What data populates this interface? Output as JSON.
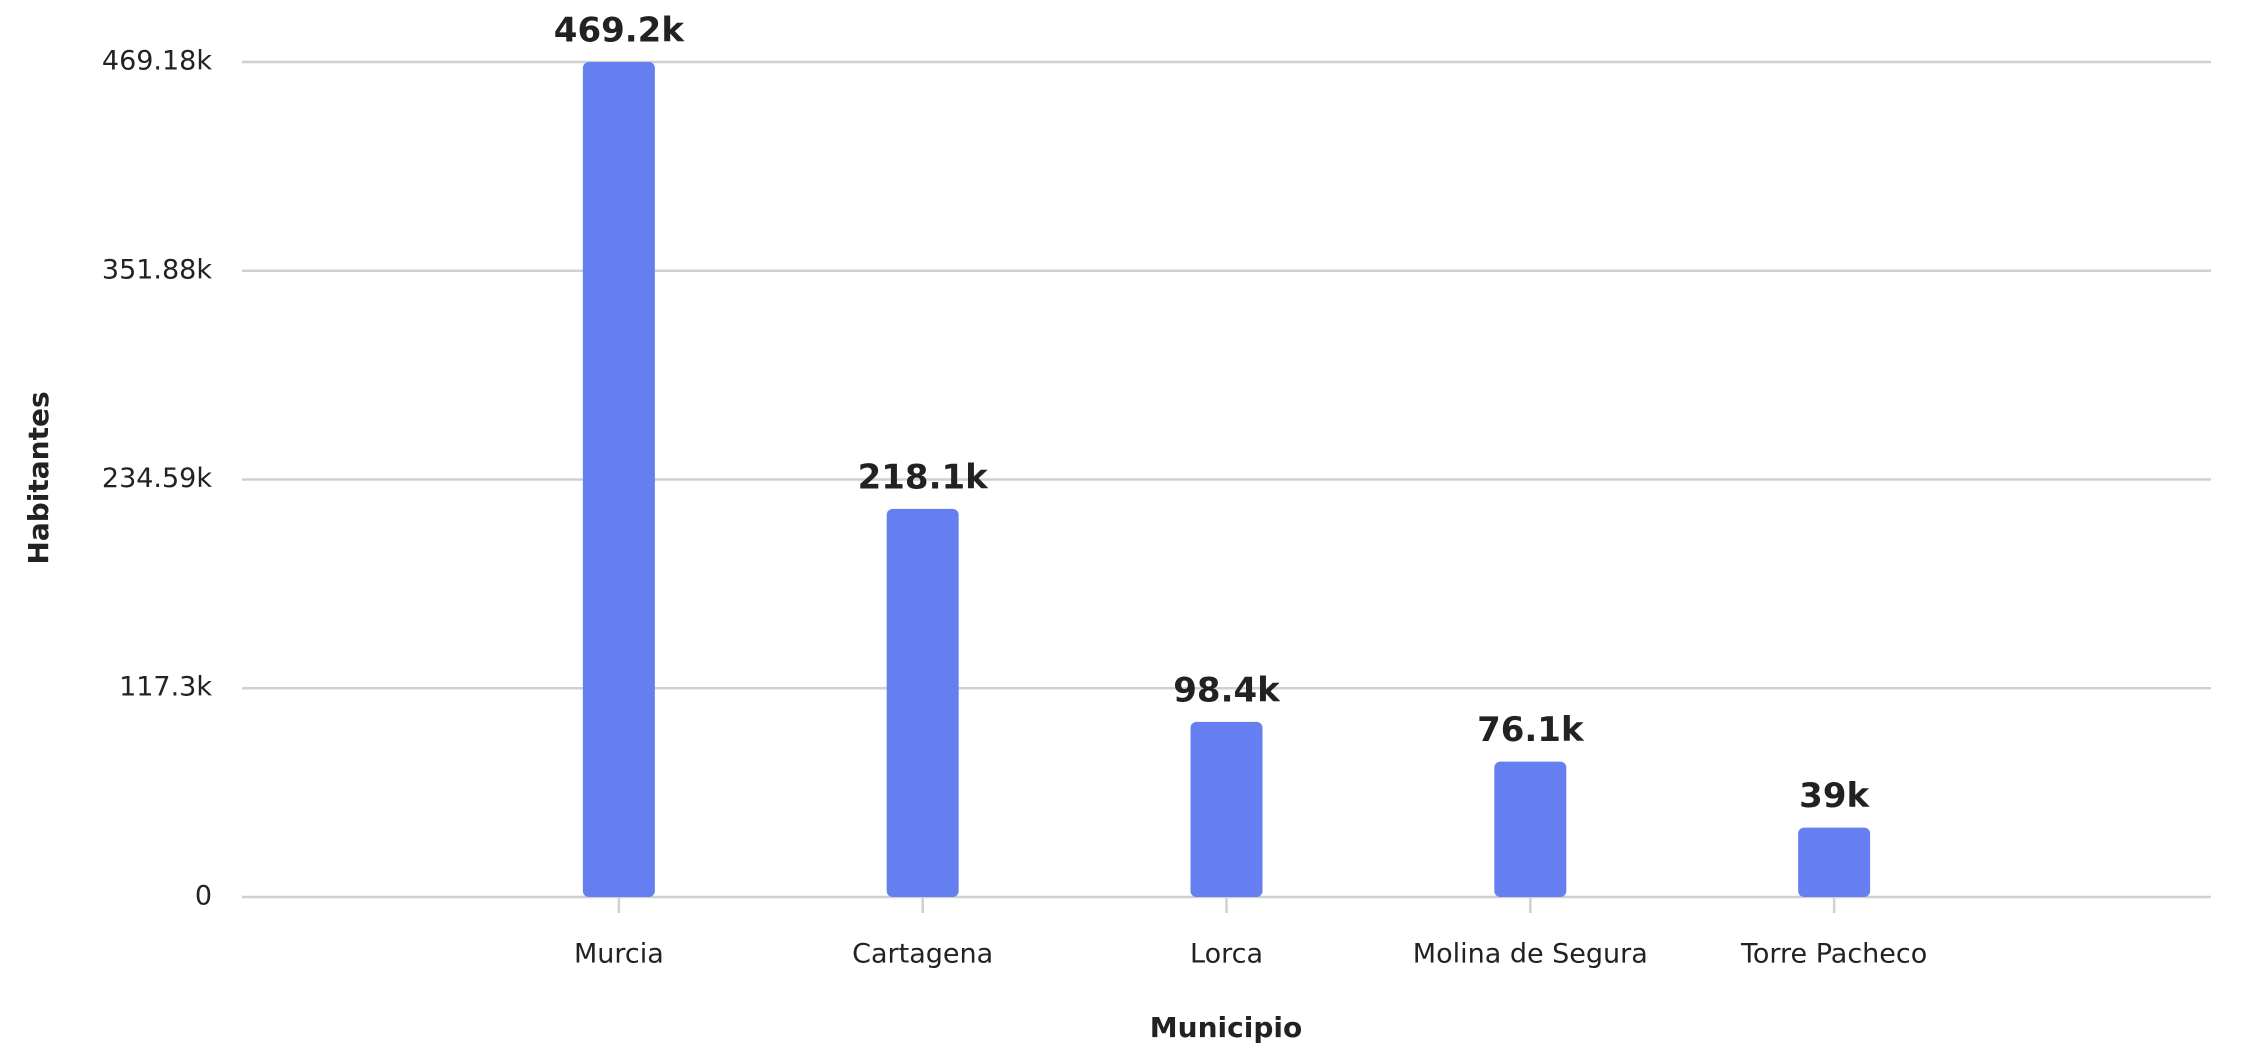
{
  "chart_data": {
    "type": "bar",
    "x_label": "Municipio",
    "y_label": "Habitantes",
    "categories": [
      "Murcia",
      "Cartagena",
      "Lorca",
      "Molina de Segura",
      "Torre Pacheco"
    ],
    "values": [
      469200,
      218100,
      98400,
      76100,
      39000
    ],
    "value_labels": [
      "469.2k",
      "218.1k",
      "98.4k",
      "76.1k",
      "39k"
    ],
    "color": "#667ff0",
    "ylim": [
      0,
      469180
    ],
    "yticks": [
      0,
      {
        "value": 117300,
        "label": "117.3k"
      },
      {
        "value": 234590,
        "label": "234.59k"
      },
      {
        "value": 351880,
        "label": "351.88k"
      },
      {
        "value": 469180,
        "label": "469.18k"
      }
    ],
    "grid": true
  }
}
